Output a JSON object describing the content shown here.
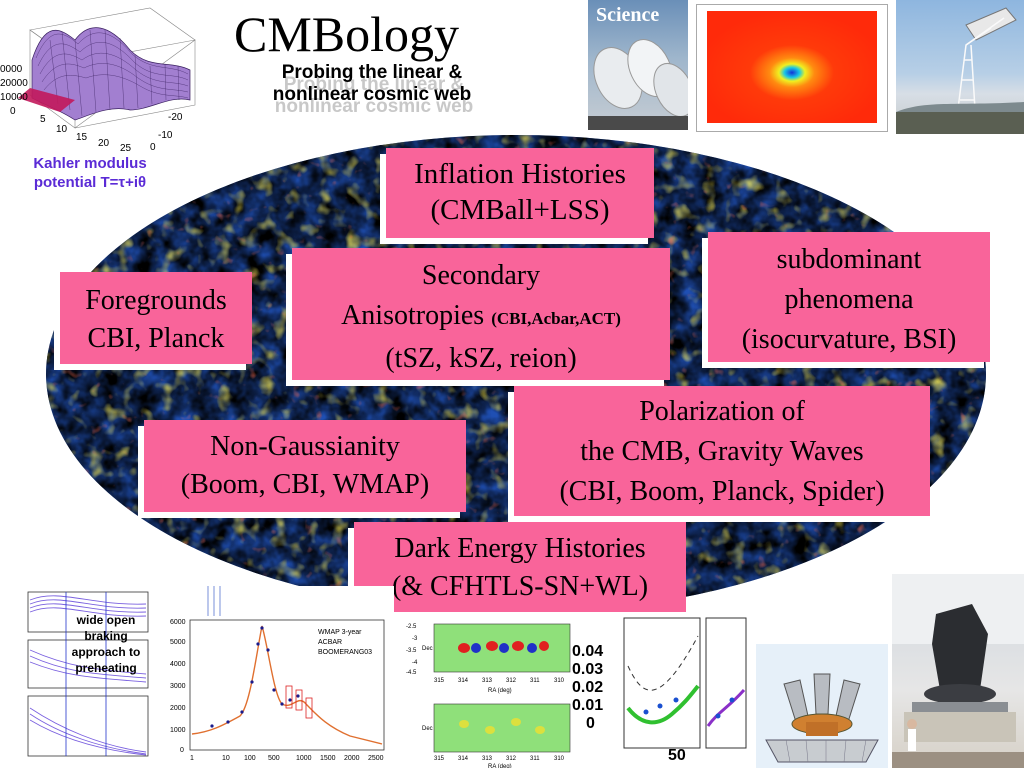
{
  "header": {
    "title": "CMBology",
    "subtitle_line1": "Probing the linear &",
    "subtitle_line2": "nonlinear cosmic web"
  },
  "kahler": {
    "line1": "Kahler modulus",
    "line2": "potential T=τ+iθ"
  },
  "plot3d_ticks": {
    "z1": "0000",
    "z2": "20000",
    "z3": "10000",
    "z4": "0",
    "x1": "5",
    "x2": "10",
    "x3": "15",
    "x4": "20",
    "x5": "25",
    "y1": "-20",
    "y2": "-10",
    "y3": "0"
  },
  "science_cover": {
    "masthead": "Science"
  },
  "topics": [
    {
      "line1": "Inflation Histories",
      "line2": "(CMBall+LSS)"
    },
    {
      "line1": "subdominant",
      "line2": "phenomena",
      "line3": "(isocurvature, BSI)"
    },
    {
      "line1": "Foregrounds",
      "line2": "CBI, Planck"
    },
    {
      "line1": "Secondary",
      "line2a": "Anisotropies ",
      "line2b": "(CBI,Acbar,ACT)",
      "line3": "(tSZ, kSZ, reion)"
    },
    {
      "line1": "Polarization of",
      "line2": "the CMB, Gravity Waves",
      "line3": "(CBI, Boom, Planck, Spider)"
    },
    {
      "line1": "Non-Gaussianity",
      "line2": "(Boom, CBI, WMAP)"
    },
    {
      "line1": "Dark Energy Histories",
      "line2": "(& CFHTLS-SN+WL)"
    }
  ],
  "preheating": {
    "l1": "wide open",
    "l2": "braking",
    "l3": "approach to",
    "l4": "preheating"
  },
  "spectrum": {
    "legend": [
      "WMAP 3-year",
      "ACBAR",
      "BOOMERANG03"
    ],
    "y_ticks": [
      "6000",
      "5000",
      "4000",
      "3000",
      "2000",
      "1000",
      "0"
    ],
    "x_ticks": [
      "1",
      "10",
      "100",
      "500",
      "1000",
      "1500",
      "2000",
      "2500"
    ]
  },
  "sz_map": {
    "x_ticks": [
      "315",
      "314",
      "313",
      "312",
      "311",
      "310"
    ],
    "xlabel": "RA (deg)",
    "ylabel": "Dec",
    "y_ticks": [
      "-2.5",
      "-3",
      "-3.5",
      "-4",
      "-4.5"
    ]
  },
  "de_plot": {
    "values": [
      "0.04",
      "0.03",
      "0.02",
      "0.01",
      "0"
    ],
    "bottom": "50"
  },
  "colors": {
    "box": "#f9649a",
    "kahler_text": "#5b2bd6"
  }
}
